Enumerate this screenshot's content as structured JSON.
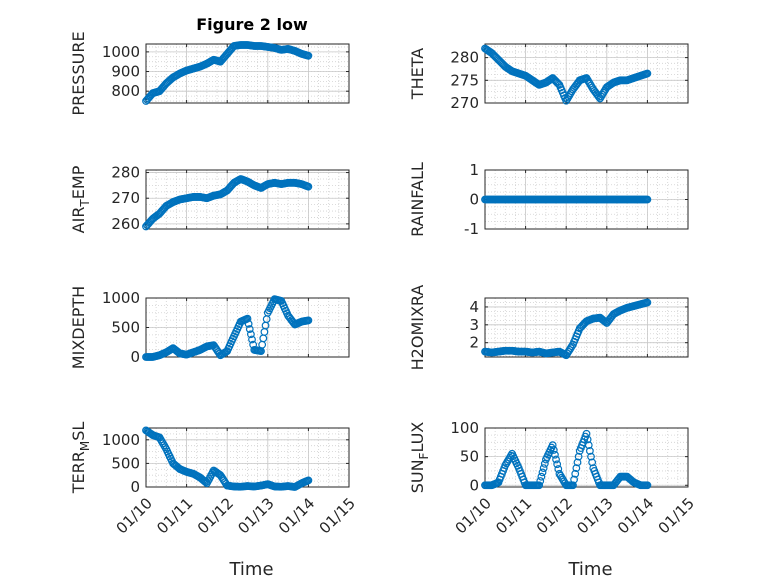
{
  "figure_title": "Figure 2 low",
  "marker_color": "#0072BD",
  "chart_data": [
    {
      "type": "scatter",
      "title": "Figure 2 low",
      "ylabel": "PRESSURE",
      "xlabel": "",
      "xlim": [
        "01/10",
        "01/14"
      ],
      "ylim": [
        740,
        1040
      ],
      "yticks": [
        800,
        900,
        1000
      ],
      "xticks": [],
      "grid": true,
      "x": [
        "01/10 00:00",
        "01/10 04:00",
        "01/10 08:00",
        "01/10 12:00",
        "01/10 16:00",
        "01/10 20:00",
        "01/11 00:00",
        "01/11 04:00",
        "01/11 08:00",
        "01/11 12:00",
        "01/11 16:00",
        "01/11 20:00",
        "01/12 00:00",
        "01/12 04:00",
        "01/12 08:00",
        "01/12 12:00",
        "01/12 16:00",
        "01/12 20:00",
        "01/13 00:00",
        "01/13 04:00",
        "01/13 08:00",
        "01/13 12:00",
        "01/13 16:00",
        "01/13 20:00",
        "01/14 00:00"
      ],
      "y": [
        750,
        790,
        800,
        840,
        870,
        890,
        905,
        915,
        925,
        940,
        960,
        950,
        990,
        1030,
        1035,
        1035,
        1030,
        1030,
        1025,
        1020,
        1010,
        1015,
        1005,
        990,
        980
      ]
    },
    {
      "type": "scatter",
      "ylabel": "THETA",
      "xlabel": "",
      "xlim": [
        "01/10",
        "01/14"
      ],
      "ylim": [
        270,
        283
      ],
      "yticks": [
        270,
        275,
        280
      ],
      "xticks": [],
      "grid": true,
      "x": [
        "01/10 00:00",
        "01/10 04:00",
        "01/10 08:00",
        "01/10 12:00",
        "01/10 16:00",
        "01/10 20:00",
        "01/11 00:00",
        "01/11 04:00",
        "01/11 08:00",
        "01/11 12:00",
        "01/11 16:00",
        "01/11 20:00",
        "01/12 00:00",
        "01/12 04:00",
        "01/12 08:00",
        "01/12 12:00",
        "01/12 16:00",
        "01/12 20:00",
        "01/13 00:00",
        "01/13 04:00",
        "01/13 08:00",
        "01/13 12:00",
        "01/13 16:00",
        "01/13 20:00",
        "01/14 00:00"
      ],
      "y": [
        282,
        281,
        279.5,
        278,
        277,
        276.5,
        276,
        275,
        274,
        274.5,
        275.5,
        274,
        270.5,
        273,
        275,
        275.5,
        273,
        271,
        273.5,
        274.5,
        275,
        275,
        275.5,
        276,
        276.5
      ]
    },
    {
      "type": "scatter",
      "ylabel": "AIR_TEMP",
      "xlabel": "",
      "xlim": [
        "01/10",
        "01/14"
      ],
      "ylim": [
        258,
        281
      ],
      "yticks": [
        260,
        270,
        280
      ],
      "xticks": [],
      "grid": true,
      "x": [
        "01/10 00:00",
        "01/10 04:00",
        "01/10 08:00",
        "01/10 12:00",
        "01/10 16:00",
        "01/10 20:00",
        "01/11 00:00",
        "01/11 04:00",
        "01/11 08:00",
        "01/11 12:00",
        "01/11 16:00",
        "01/11 20:00",
        "01/12 00:00",
        "01/12 04:00",
        "01/12 08:00",
        "01/12 12:00",
        "01/12 16:00",
        "01/12 20:00",
        "01/13 00:00",
        "01/13 04:00",
        "01/13 08:00",
        "01/13 12:00",
        "01/13 16:00",
        "01/13 20:00",
        "01/14 00:00"
      ],
      "y": [
        259,
        262,
        264,
        267,
        268.5,
        269.5,
        270,
        270.5,
        270.5,
        270,
        271,
        271.5,
        273,
        276,
        277.5,
        276.5,
        275,
        274,
        275.5,
        276,
        275.5,
        276,
        276,
        275.5,
        274.5
      ]
    },
    {
      "type": "scatter",
      "ylabel": "RAINFALL",
      "xlabel": "",
      "xlim": [
        "01/10",
        "01/14"
      ],
      "ylim": [
        -1,
        1
      ],
      "yticks": [
        -1,
        0,
        1
      ],
      "xticks": [],
      "grid": true,
      "x": [
        "01/10 00:00",
        "01/10 04:00",
        "01/10 08:00",
        "01/10 12:00",
        "01/10 16:00",
        "01/10 20:00",
        "01/11 00:00",
        "01/11 04:00",
        "01/11 08:00",
        "01/11 12:00",
        "01/11 16:00",
        "01/11 20:00",
        "01/12 00:00",
        "01/12 04:00",
        "01/12 08:00",
        "01/12 12:00",
        "01/12 16:00",
        "01/12 20:00",
        "01/13 00:00",
        "01/13 04:00",
        "01/13 08:00",
        "01/13 12:00",
        "01/13 16:00",
        "01/13 20:00",
        "01/14 00:00"
      ],
      "y": [
        0,
        0,
        0,
        0,
        0,
        0,
        0,
        0,
        0,
        0,
        0,
        0,
        0,
        0,
        0,
        0,
        0,
        0,
        0,
        0,
        0,
        0,
        0,
        0,
        0
      ]
    },
    {
      "type": "scatter",
      "ylabel": "MIXDEPTH",
      "xlabel": "",
      "xlim": [
        "01/10",
        "01/14"
      ],
      "ylim": [
        0,
        1000
      ],
      "yticks": [
        0,
        500,
        1000
      ],
      "xticks": [],
      "grid": true,
      "x": [
        "01/10 00:00",
        "01/10 04:00",
        "01/10 08:00",
        "01/10 12:00",
        "01/10 16:00",
        "01/10 20:00",
        "01/11 00:00",
        "01/11 04:00",
        "01/11 08:00",
        "01/11 12:00",
        "01/11 16:00",
        "01/11 20:00",
        "01/12 00:00",
        "01/12 04:00",
        "01/12 08:00",
        "01/12 12:00",
        "01/12 16:00",
        "01/12 20:00",
        "01/13 00:00",
        "01/13 04:00",
        "01/13 08:00",
        "01/13 12:00",
        "01/13 16:00",
        "01/13 20:00",
        "01/14 00:00"
      ],
      "y": [
        0,
        0,
        30,
        80,
        150,
        60,
        40,
        80,
        120,
        180,
        200,
        30,
        100,
        350,
        600,
        650,
        120,
        100,
        750,
        980,
        950,
        700,
        550,
        600,
        620
      ]
    },
    {
      "type": "scatter",
      "ylabel": "H2OMIXRA",
      "xlabel": "",
      "xlim": [
        "01/10",
        "01/14"
      ],
      "ylim": [
        1.2,
        4.5
      ],
      "yticks": [
        2,
        3,
        4
      ],
      "xticks": [],
      "grid": true,
      "x": [
        "01/10 00:00",
        "01/10 04:00",
        "01/10 08:00",
        "01/10 12:00",
        "01/10 16:00",
        "01/10 20:00",
        "01/11 00:00",
        "01/11 04:00",
        "01/11 08:00",
        "01/11 12:00",
        "01/11 16:00",
        "01/11 20:00",
        "01/12 00:00",
        "01/12 04:00",
        "01/12 08:00",
        "01/12 12:00",
        "01/12 16:00",
        "01/12 20:00",
        "01/13 00:00",
        "01/13 04:00",
        "01/13 08:00",
        "01/13 12:00",
        "01/13 16:00",
        "01/13 20:00",
        "01/14 00:00"
      ],
      "y": [
        1.5,
        1.45,
        1.5,
        1.55,
        1.55,
        1.5,
        1.5,
        1.45,
        1.5,
        1.4,
        1.45,
        1.5,
        1.3,
        1.9,
        2.8,
        3.2,
        3.35,
        3.4,
        3.1,
        3.6,
        3.8,
        3.95,
        4.05,
        4.15,
        4.25
      ]
    },
    {
      "type": "scatter",
      "ylabel": "TERR_MSL",
      "xlabel": "Time",
      "xlim": [
        "01/10",
        "01/15"
      ],
      "ylim": [
        0,
        1250
      ],
      "yticks": [
        0,
        500,
        1000
      ],
      "xticks": [
        "01/10",
        "01/11",
        "01/12",
        "01/13",
        "01/14",
        "01/15"
      ],
      "grid": true,
      "x": [
        "01/10 00:00",
        "01/10 04:00",
        "01/10 08:00",
        "01/10 12:00",
        "01/10 16:00",
        "01/10 20:00",
        "01/11 00:00",
        "01/11 04:00",
        "01/11 08:00",
        "01/11 12:00",
        "01/11 16:00",
        "01/11 20:00",
        "01/12 00:00",
        "01/12 04:00",
        "01/12 08:00",
        "01/12 12:00",
        "01/12 16:00",
        "01/12 20:00",
        "01/13 00:00",
        "01/13 04:00",
        "01/13 08:00",
        "01/13 12:00",
        "01/13 16:00",
        "01/13 20:00",
        "01/14 00:00"
      ],
      "y": [
        1200,
        1100,
        1050,
        800,
        500,
        380,
        320,
        280,
        200,
        80,
        350,
        250,
        30,
        10,
        5,
        20,
        10,
        30,
        60,
        10,
        5,
        20,
        0,
        80,
        140
      ]
    },
    {
      "type": "scatter",
      "ylabel": "SUN_FLUX",
      "xlabel": "Time",
      "xlim": [
        "01/10",
        "01/15"
      ],
      "ylim": [
        -3,
        100
      ],
      "yticks": [
        0,
        50,
        100
      ],
      "xticks": [
        "01/10",
        "01/11",
        "01/12",
        "01/13",
        "01/14",
        "01/15"
      ],
      "grid": true,
      "x": [
        "01/10 00:00",
        "01/10 04:00",
        "01/10 08:00",
        "01/10 12:00",
        "01/10 16:00",
        "01/10 20:00",
        "01/11 00:00",
        "01/11 04:00",
        "01/11 08:00",
        "01/11 12:00",
        "01/11 16:00",
        "01/11 20:00",
        "01/12 00:00",
        "01/12 04:00",
        "01/12 08:00",
        "01/12 12:00",
        "01/12 16:00",
        "01/12 20:00",
        "01/13 00:00",
        "01/13 04:00",
        "01/13 08:00",
        "01/13 12:00",
        "01/13 16:00",
        "01/13 20:00",
        "01/14 00:00"
      ],
      "y": [
        0,
        0,
        5,
        35,
        55,
        30,
        0,
        0,
        0,
        45,
        70,
        20,
        0,
        0,
        60,
        90,
        30,
        0,
        0,
        0,
        15,
        15,
        5,
        0,
        0
      ]
    }
  ]
}
